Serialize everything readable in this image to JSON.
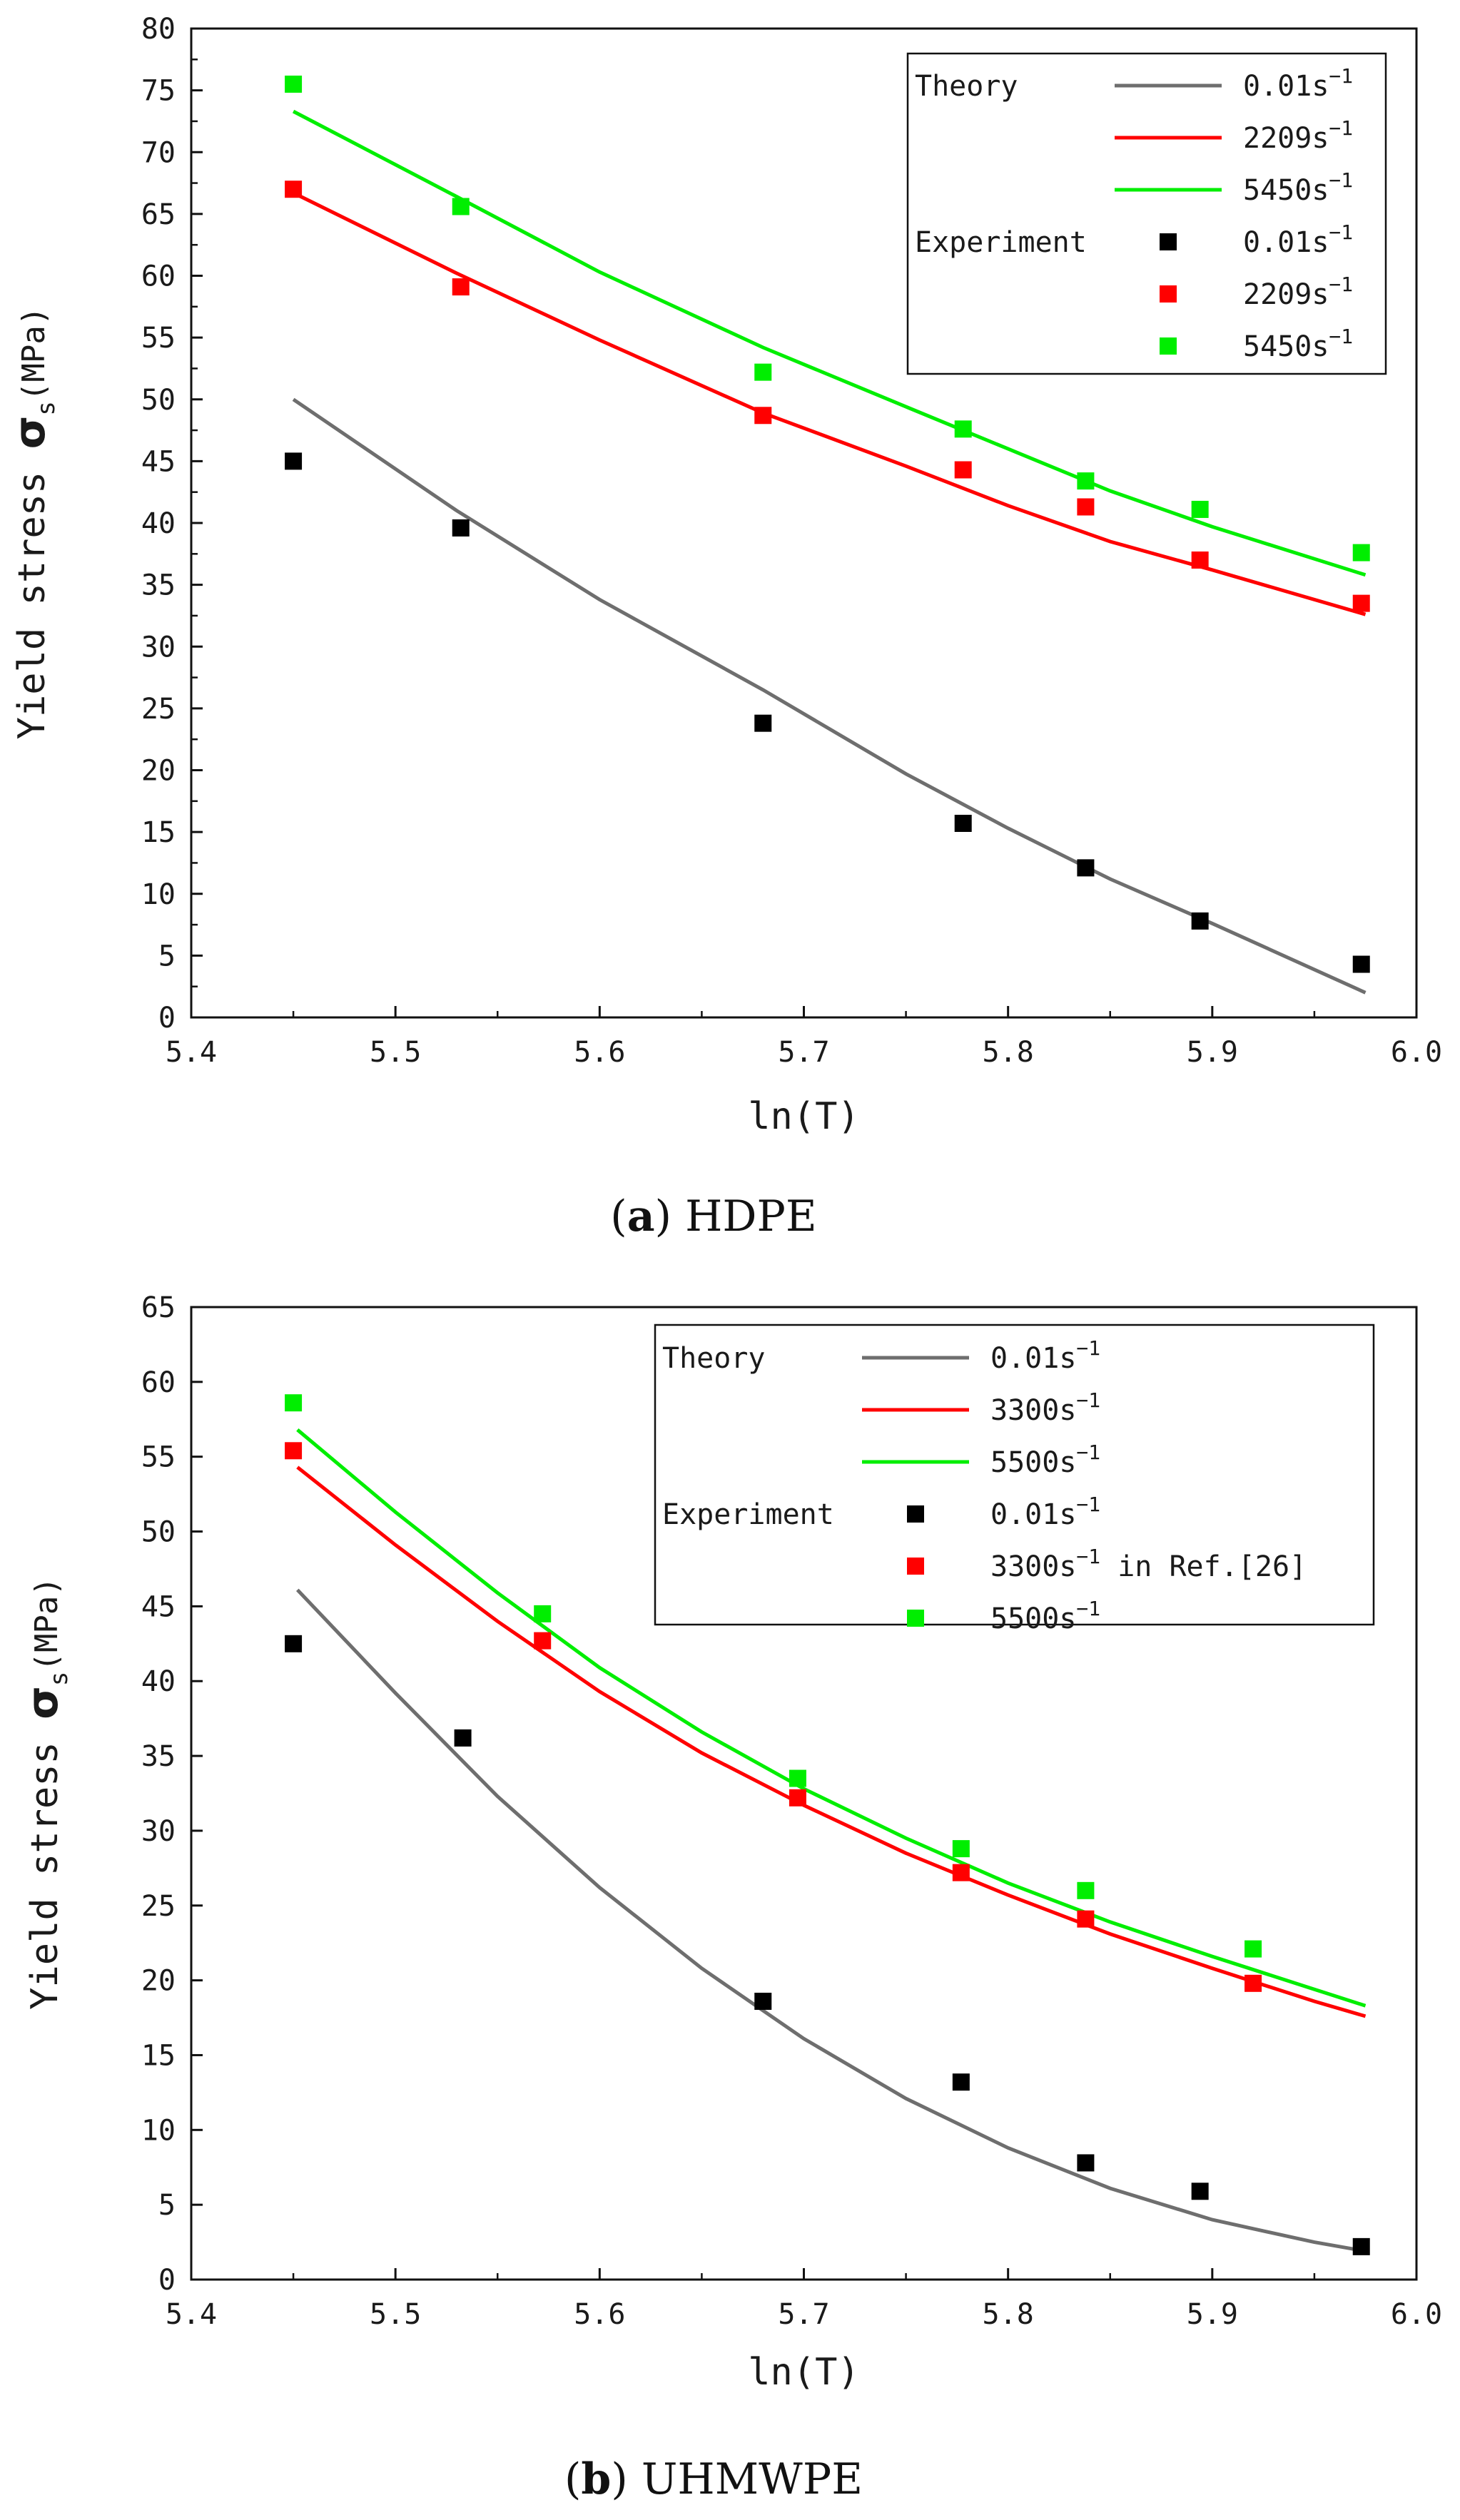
{
  "chart_data": [
    {
      "type": "scatter",
      "caption": {
        "letter": "a",
        "open": "(",
        "close": ")",
        "text": " HDPE"
      },
      "xlabel": "ln(T)",
      "ylabel": {
        "prefix": "Yield stress ",
        "symbol": "σ",
        "subscript": "s",
        "unit": "(MPa)"
      },
      "xlim": [
        5.4,
        6.0
      ],
      "ylim": [
        0,
        80
      ],
      "xticks": [
        "5.4",
        "5.5",
        "5.6",
        "5.7",
        "5.8",
        "5.9",
        "6.0"
      ],
      "yticks": [
        "0",
        "5",
        "10",
        "15",
        "20",
        "25",
        "30",
        "35",
        "40",
        "45",
        "50",
        "55",
        "60",
        "65",
        "70",
        "75",
        "80"
      ],
      "legend": {
        "position": "top-right",
        "theory_label": "Theory",
        "experiment_label": "Experiment",
        "theory_entries": [
          {
            "rate": "0.01",
            "unit": "s",
            "exp": "−1",
            "suffix": ""
          },
          {
            "rate": "2209",
            "unit": "s",
            "exp": "−1",
            "suffix": ""
          },
          {
            "rate": "5450",
            "unit": "s",
            "exp": "−1",
            "suffix": ""
          }
        ],
        "experiment_entries": [
          {
            "rate": "0.01",
            "unit": "s",
            "exp": "−1",
            "suffix": ""
          },
          {
            "rate": "2209",
            "unit": "s",
            "exp": "−1",
            "suffix": ""
          },
          {
            "rate": "5450",
            "unit": "s",
            "exp": "−1",
            "suffix": ""
          }
        ]
      },
      "series": [
        {
          "name": "0.01s-1",
          "color": "#6e6e6e",
          "marker_color": "#000000",
          "theory": {
            "x": [
              5.45,
              5.53,
              5.6,
              5.68,
              5.75,
              5.8,
              5.85,
              5.9,
              5.975
            ],
            "y": [
              50,
              41,
              33.8,
              26.5,
              19.7,
              15.3,
              11.2,
              7.6,
              2
            ]
          },
          "experiment": {
            "x": [
              5.45,
              5.532,
              5.68,
              5.778,
              5.838,
              5.894,
              5.973
            ],
            "y": [
              45,
              39.6,
              23.8,
              15.7,
              12.1,
              7.8,
              4.3
            ]
          }
        },
        {
          "name": "2209s-1",
          "color": "#ff0000",
          "marker_color": "#ff0000",
          "theory": {
            "x": [
              5.45,
              5.53,
              5.6,
              5.68,
              5.75,
              5.8,
              5.85,
              5.9,
              5.975
            ],
            "y": [
              66.7,
              60.2,
              54.8,
              48.9,
              44.6,
              41.4,
              38.5,
              36.2,
              32.6
            ]
          },
          "experiment": {
            "x": [
              5.45,
              5.532,
              5.68,
              5.778,
              5.838,
              5.894,
              5.973
            ],
            "y": [
              67,
              59.1,
              48.7,
              44.3,
              41.3,
              37,
              33.5
            ]
          }
        },
        {
          "name": "5450s-1",
          "color": "#00ee00",
          "marker_color": "#00ee00",
          "theory": {
            "x": [
              5.45,
              5.53,
              5.6,
              5.68,
              5.75,
              5.8,
              5.85,
              5.9,
              5.975
            ],
            "y": [
              73.3,
              66.4,
              60.3,
              54.2,
              49.4,
              46,
              42.6,
              39.7,
              35.8
            ]
          },
          "experiment": {
            "x": [
              5.45,
              5.532,
              5.68,
              5.778,
              5.838,
              5.894,
              5.973
            ],
            "y": [
              75.5,
              65.6,
              52.2,
              47.6,
              43.4,
              41.1,
              37.6
            ]
          }
        }
      ]
    },
    {
      "type": "scatter",
      "caption": {
        "letter": "b",
        "open": "(",
        "close": ")",
        "text": " UHMWPE"
      },
      "xlabel": "ln(T)",
      "ylabel": {
        "prefix": "Yield stress ",
        "symbol": "σ",
        "subscript": "s",
        "unit": "(MPa)"
      },
      "xlim": [
        5.4,
        6.0
      ],
      "ylim": [
        0,
        65
      ],
      "xticks": [
        "5.4",
        "5.5",
        "5.6",
        "5.7",
        "5.8",
        "5.9",
        "6.0"
      ],
      "yticks": [
        "0",
        "5",
        "10",
        "15",
        "20",
        "25",
        "30",
        "35",
        "40",
        "45",
        "50",
        "55",
        "60",
        "65"
      ],
      "legend": {
        "position": "top-right",
        "theory_label": "Theory",
        "experiment_label": "Experiment",
        "theory_entries": [
          {
            "rate": "0.01",
            "unit": "s",
            "exp": "−1",
            "suffix": ""
          },
          {
            "rate": "3300",
            "unit": "s",
            "exp": "−1",
            "suffix": ""
          },
          {
            "rate": "5500",
            "unit": "s",
            "exp": "−1",
            "suffix": ""
          }
        ],
        "experiment_entries": [
          {
            "rate": "0.01",
            "unit": "s",
            "exp": "−1",
            "suffix": ""
          },
          {
            "rate": "3300",
            "unit": "s",
            "exp": "−1",
            "suffix": " in Ref.[26]"
          },
          {
            "rate": "5500",
            "unit": "s",
            "exp": "−1",
            "suffix": ""
          }
        ]
      },
      "series": [
        {
          "name": "0.01s-1",
          "color": "#6e6e6e",
          "marker_color": "#000000",
          "theory": {
            "x": [
              5.452,
              5.5,
              5.55,
              5.6,
              5.65,
              5.7,
              5.75,
              5.8,
              5.85,
              5.9,
              5.95,
              5.975
            ],
            "y": [
              46.1,
              39.2,
              32.3,
              26.2,
              20.8,
              16.1,
              12.1,
              8.8,
              6.1,
              4,
              2.5,
              1.9
            ]
          },
          "experiment": {
            "x": [
              5.45,
              5.533,
              5.68,
              5.777,
              5.838,
              5.894,
              5.973
            ],
            "y": [
              42.5,
              36.2,
              18.6,
              13.2,
              7.8,
              5.9,
              2.2
            ]
          }
        },
        {
          "name": "3300s-1",
          "color": "#ff0000",
          "marker_color": "#ff0000",
          "theory": {
            "x": [
              5.452,
              5.5,
              5.55,
              5.6,
              5.65,
              5.7,
              5.75,
              5.8,
              5.85,
              5.9,
              5.95,
              5.975
            ],
            "y": [
              54.3,
              49.1,
              44,
              39.3,
              35.2,
              31.7,
              28.5,
              25.7,
              23.1,
              20.8,
              18.6,
              17.6
            ]
          },
          "experiment": {
            "x": [
              5.45,
              5.572,
              5.697,
              5.777,
              5.838,
              5.92
            ],
            "y": [
              55.4,
              42.7,
              32.2,
              27.2,
              24.1,
              19.8
            ]
          }
        },
        {
          "name": "5500s-1",
          "color": "#00ee00",
          "marker_color": "#00ee00",
          "theory": {
            "x": [
              5.452,
              5.5,
              5.55,
              5.6,
              5.65,
              5.7,
              5.75,
              5.8,
              5.85,
              5.9,
              5.95,
              5.975
            ],
            "y": [
              56.8,
              51.3,
              45.9,
              40.9,
              36.6,
              32.8,
              29.5,
              26.5,
              23.9,
              21.6,
              19.4,
              18.3
            ]
          },
          "experiment": {
            "x": [
              5.45,
              5.572,
              5.697,
              5.777,
              5.838,
              5.92
            ],
            "y": [
              58.6,
              44.5,
              33.5,
              28.8,
              26,
              22.1
            ]
          }
        }
      ]
    }
  ]
}
